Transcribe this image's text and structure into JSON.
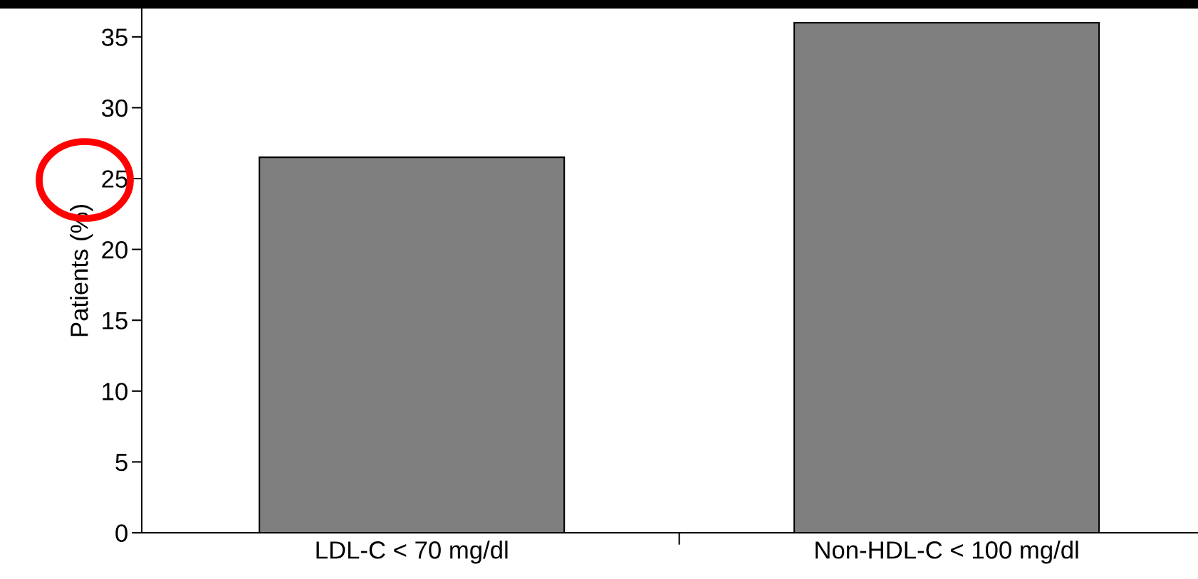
{
  "chart_data": {
    "type": "bar",
    "ylabel": "Patients (%)",
    "categories": [
      "LDL-C < 70 mg/dl",
      "Non-HDL-C < 100 mg/dl"
    ],
    "values": [
      26.5,
      36
    ],
    "color": "#7f7f7f",
    "ylim": [
      0,
      37
    ],
    "yticks": [
      0,
      5,
      10,
      15,
      20,
      25,
      30,
      35
    ],
    "grid": false
  }
}
